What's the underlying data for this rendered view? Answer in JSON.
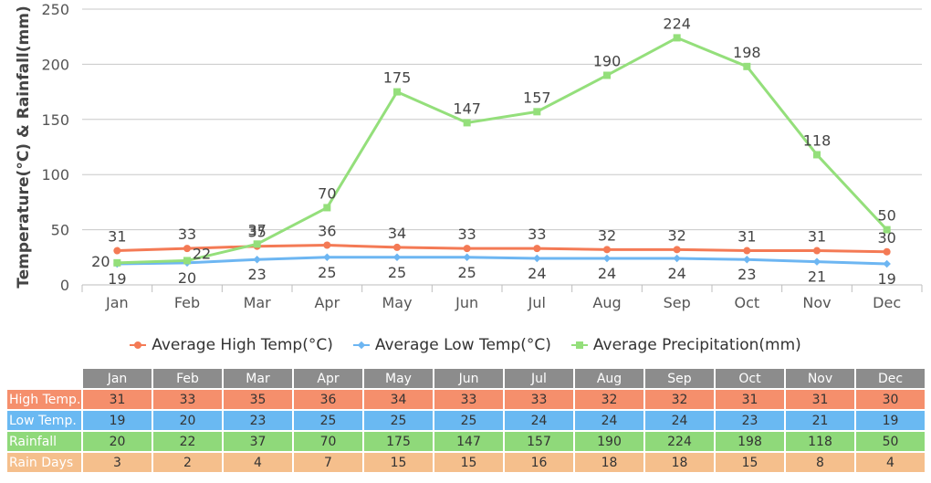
{
  "chart_data": {
    "type": "line",
    "ylabel": "Temperature(°C) & Rainfall(mm)",
    "ylim": [
      0,
      250
    ],
    "yticks": [
      0,
      50,
      100,
      150,
      200,
      250
    ],
    "grid": true,
    "legend_position": "bottom",
    "categories": [
      "Jan",
      "Feb",
      "Mar",
      "Apr",
      "May",
      "Jun",
      "Jul",
      "Aug",
      "Sep",
      "Oct",
      "Nov",
      "Dec"
    ],
    "series": [
      {
        "name": "Average High Temp(°C)",
        "color": "#f47a55",
        "marker": "circle",
        "values": [
          31,
          33,
          35,
          36,
          34,
          33,
          33,
          32,
          32,
          31,
          31,
          30
        ]
      },
      {
        "name": "Average Low Temp(°C)",
        "color": "#6db6f2",
        "marker": "diamond",
        "values": [
          19,
          20,
          23,
          25,
          25,
          25,
          24,
          24,
          24,
          23,
          21,
          19
        ]
      },
      {
        "name": "Average Precipitation(mm)",
        "color": "#94df7b",
        "marker": "square",
        "values": [
          20,
          22,
          37,
          70,
          175,
          147,
          157,
          190,
          224,
          198,
          118,
          50
        ]
      }
    ]
  },
  "table": {
    "header_color": "#8c8c8c",
    "columns": [
      "Jan",
      "Feb",
      "Mar",
      "Apr",
      "May",
      "Jun",
      "Jul",
      "Aug",
      "Sep",
      "Oct",
      "Nov",
      "Dec"
    ],
    "rows": [
      {
        "label": "High Temp.",
        "color": "#f58f6c",
        "values": [
          "31",
          "33",
          "35",
          "36",
          "34",
          "33",
          "33",
          "32",
          "32",
          "31",
          "31",
          "30"
        ]
      },
      {
        "label": "Low Temp.",
        "color": "#6ab9f2",
        "values": [
          "19",
          "20",
          "23",
          "25",
          "25",
          "25",
          "24",
          "24",
          "24",
          "23",
          "21",
          "19"
        ]
      },
      {
        "label": "Rainfall",
        "color": "#8fd97a",
        "values": [
          "20",
          "22",
          "37",
          "70",
          "175",
          "147",
          "157",
          "190",
          "224",
          "198",
          "118",
          "50"
        ]
      },
      {
        "label": "Rain Days",
        "color": "#f5bf8c",
        "values": [
          "3",
          "2",
          "4",
          "7",
          "15",
          "15",
          "16",
          "18",
          "18",
          "15",
          "8",
          "4"
        ]
      }
    ]
  }
}
